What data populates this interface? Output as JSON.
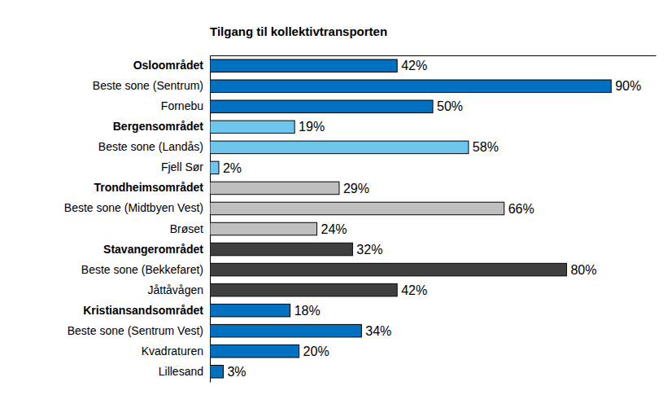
{
  "chart_data": {
    "type": "bar",
    "orientation": "horizontal",
    "title": "Tilgang til kollektivtransporten",
    "categories": [
      "Osloområdet",
      "Beste sone (Sentrum)",
      "Fornebu",
      "Bergensområdet",
      "Beste sone (Landås)",
      "Fjell Sør",
      "Trondheimsområdet",
      "Beste sone (Midtbyen Vest)",
      "Brøset",
      "Stavangerområdet",
      "Beste sone (Bekkefaret)",
      "Jåttåvågen",
      "Kristiansandsområdet",
      "Beste sone (Sentrum Vest)",
      "Kvadraturen",
      "Lillesand"
    ],
    "values": [
      42,
      90,
      50,
      19,
      58,
      2,
      29,
      66,
      24,
      32,
      80,
      42,
      18,
      34,
      20,
      3
    ],
    "value_labels": [
      "42%",
      "90%",
      "50%",
      "19%",
      "58%",
      "2%",
      "29%",
      "66%",
      "24%",
      "32%",
      "80%",
      "42%",
      "18%",
      "34%",
      "20%",
      "3%"
    ],
    "colors": [
      "#0070c0",
      "#0070c0",
      "#0070c0",
      "#6ec6ec",
      "#6ec6ec",
      "#6ec6ec",
      "#bfbfbf",
      "#bfbfbf",
      "#bfbfbf",
      "#404040",
      "#404040",
      "#404040",
      "#0070c0",
      "#0070c0",
      "#0070c0",
      "#0070c0"
    ],
    "xlim": [
      0,
      100
    ],
    "grid": false,
    "data_labels": true,
    "tick_labels": "y"
  }
}
